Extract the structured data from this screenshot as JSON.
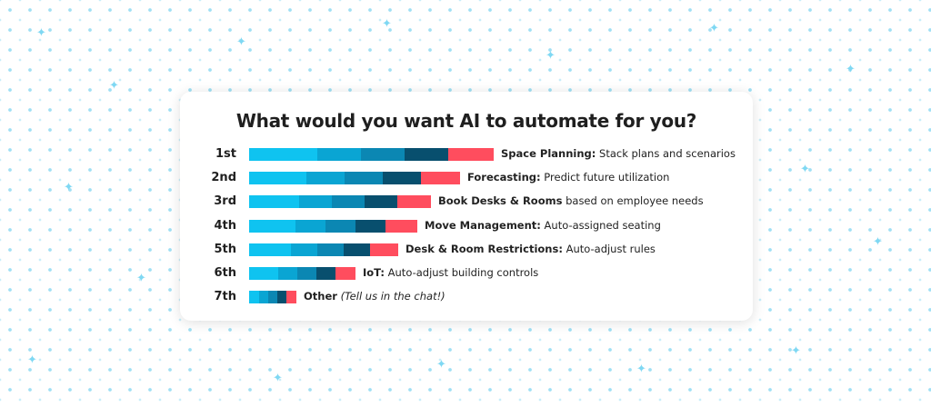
{
  "chart_data": {
    "type": "bar",
    "title": "What would you want AI to automate for you?",
    "rows": [
      {
        "rank": "1st",
        "label_bold": "Space Planning:",
        "label_rest": " Stack plans and scenarios",
        "italic_rest": false,
        "segments": [
          75,
          48,
          48,
          48,
          50
        ]
      },
      {
        "rank": "2nd",
        "label_bold": "Forecasting:",
        "label_rest": " Predict future utilization",
        "italic_rest": false,
        "segments": [
          63,
          42,
          42,
          42,
          43
        ]
      },
      {
        "rank": "3rd",
        "label_bold": "Book Desks & Rooms",
        "label_rest": " based on employee needs",
        "italic_rest": false,
        "segments": [
          55,
          36,
          36,
          36,
          37
        ]
      },
      {
        "rank": "4th",
        "label_bold": "Move Management:",
        "label_rest": " Auto-assigned seating",
        "italic_rest": false,
        "segments": [
          51,
          33,
          33,
          33,
          35
        ]
      },
      {
        "rank": "5th",
        "label_bold": "Desk & Room Restrictions:",
        "label_rest": " Auto-adjust rules",
        "italic_rest": false,
        "segments": [
          46,
          29,
          29,
          29,
          31
        ]
      },
      {
        "rank": "6th",
        "label_bold": "IoT:",
        "label_rest": " Auto-adjust building controls",
        "italic_rest": false,
        "segments": [
          32,
          21,
          21,
          21,
          22
        ]
      },
      {
        "rank": "7th",
        "label_bold": "Other",
        "label_rest": " (Tell us in the chat!)",
        "italic_rest": true,
        "segments": [
          11,
          10,
          10,
          10,
          11
        ]
      }
    ],
    "segment_colors": [
      "#0fc3f0",
      "#0aa5d3",
      "#0b87b3",
      "#084f6e",
      "#ff4d5e"
    ]
  }
}
